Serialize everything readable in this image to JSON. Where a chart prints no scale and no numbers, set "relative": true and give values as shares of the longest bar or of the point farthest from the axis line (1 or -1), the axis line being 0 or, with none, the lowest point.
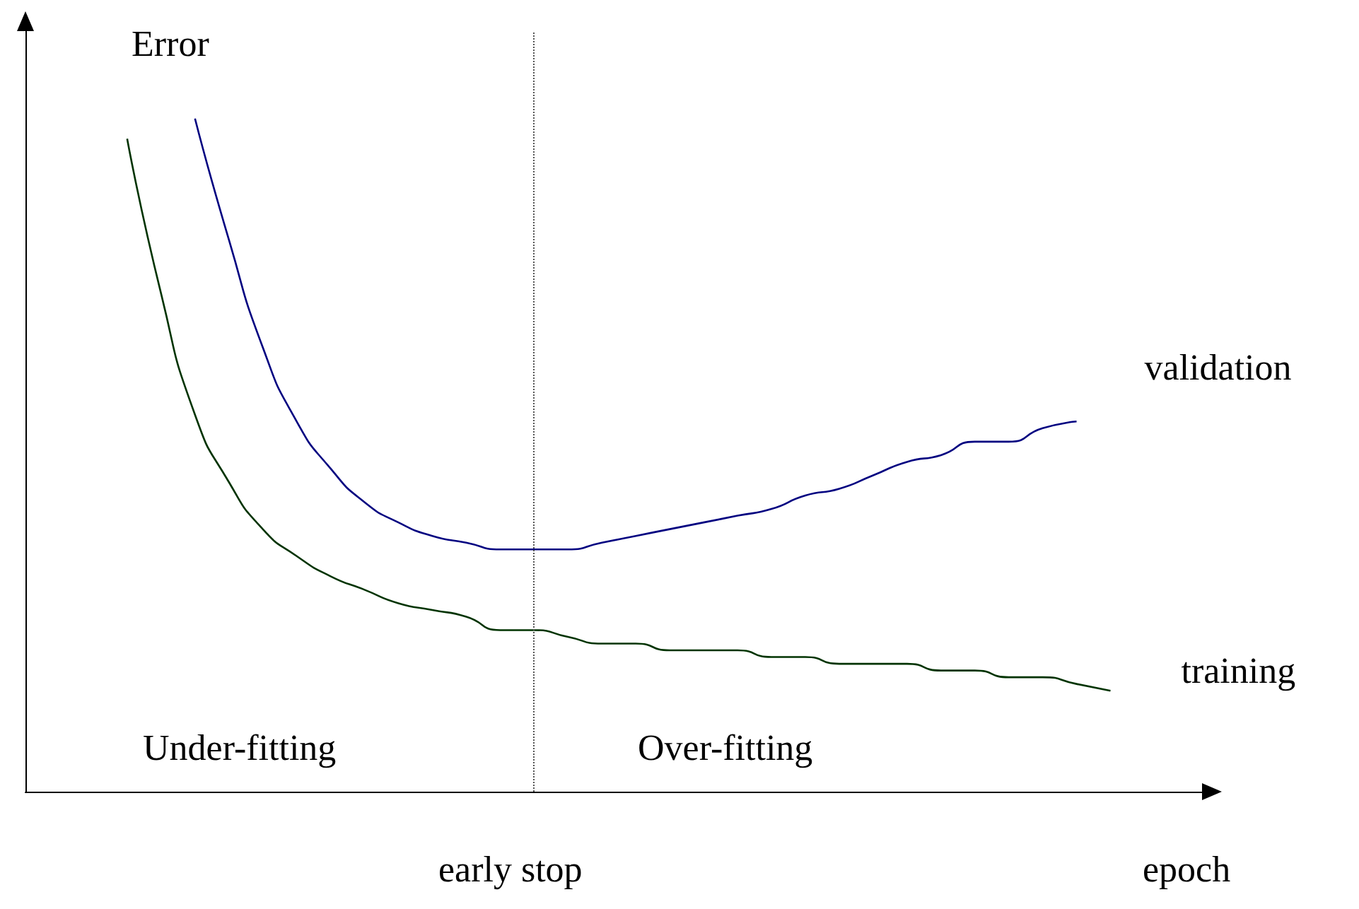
{
  "chart_data": {
    "type": "line",
    "relative": true,
    "ylabel": "Error",
    "xlabel": "epoch",
    "categories": [
      null,
      null,
      null,
      null,
      null,
      null,
      null,
      null,
      null,
      null,
      null,
      null,
      null,
      null,
      null,
      null,
      null,
      null,
      null,
      null,
      null,
      null,
      null,
      null,
      null,
      null,
      null,
      null,
      null,
      null
    ],
    "series": [
      {
        "name": "validation",
        "color": "#000080",
        "values": [
          null,
          null,
          1.0,
          0.82,
          0.66,
          0.55,
          0.48,
          0.43,
          0.4,
          0.38,
          0.37,
          0.36,
          0.36,
          0.36,
          0.37,
          0.38,
          0.39,
          0.4,
          0.41,
          0.42,
          0.44,
          0.45,
          0.47,
          0.49,
          0.5,
          0.52,
          0.52,
          0.54,
          0.55,
          null
        ]
      },
      {
        "name": "training",
        "color": "#003300",
        "values": [
          0.97,
          0.74,
          0.56,
          0.46,
          0.39,
          0.35,
          0.32,
          0.3,
          0.28,
          0.27,
          0.26,
          0.24,
          0.24,
          0.23,
          0.22,
          0.22,
          0.21,
          0.21,
          0.21,
          0.2,
          0.2,
          0.19,
          0.19,
          0.19,
          0.18,
          0.18,
          0.17,
          0.17,
          0.16,
          0.15
        ]
      }
    ],
    "annotations": [
      "Under-fitting",
      "Over-fitting",
      "early stop"
    ],
    "grid": false,
    "legend": false,
    "marker": "none",
    "line_style": "solid"
  }
}
